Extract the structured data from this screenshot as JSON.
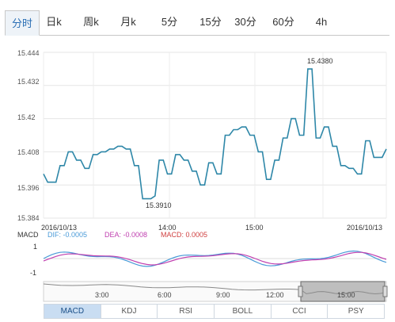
{
  "tabs": [
    {
      "label": "分时",
      "active": true
    },
    {
      "label": "日k",
      "active": false
    },
    {
      "label": "周k",
      "active": false
    },
    {
      "label": "月k",
      "active": false
    },
    {
      "label": "5分",
      "active": false
    },
    {
      "label": "15分",
      "active": false
    },
    {
      "label": "30分",
      "active": false
    },
    {
      "label": "60分",
      "active": false
    },
    {
      "label": "4h",
      "active": false
    }
  ],
  "chart_data": {
    "type": "line",
    "y_ticks": [
      "15.444",
      "15.432",
      "15.42",
      "15.408",
      "15.396",
      "15.384"
    ],
    "ylim": [
      15.384,
      15.444
    ],
    "grid": true,
    "x_tick_labels": [
      "2016/10/13",
      "14:00",
      "15:00",
      "2016/10/13"
    ],
    "annotations": [
      {
        "text": "15.4380",
        "y": 15.438
      },
      {
        "text": "15.3910",
        "y": 15.391
      }
    ],
    "series": [
      {
        "color": "#2e87a8",
        "values": [
          15.4,
          15.397,
          15.397,
          15.397,
          15.403,
          15.403,
          15.408,
          15.408,
          15.405,
          15.405,
          15.402,
          15.402,
          15.407,
          15.407,
          15.408,
          15.408,
          15.409,
          15.409,
          15.41,
          15.41,
          15.409,
          15.409,
          15.403,
          15.403,
          15.391,
          15.391,
          15.391,
          15.392,
          15.405,
          15.405,
          15.4,
          15.4,
          15.407,
          15.407,
          15.405,
          15.405,
          15.401,
          15.401,
          15.396,
          15.396,
          15.404,
          15.404,
          15.4,
          15.4,
          15.414,
          15.414,
          15.416,
          15.416,
          15.417,
          15.417,
          15.414,
          15.414,
          15.408,
          15.408,
          15.398,
          15.398,
          15.405,
          15.405,
          15.413,
          15.413,
          15.42,
          15.42,
          15.414,
          15.414,
          15.438,
          15.438,
          15.413,
          15.413,
          15.417,
          15.417,
          15.41,
          15.41,
          15.403,
          15.403,
          15.402,
          15.402,
          15.4,
          15.4,
          15.412,
          15.412,
          15.406,
          15.406,
          15.406,
          15.409
        ]
      }
    ]
  },
  "macd": {
    "label": "MACD",
    "dif": "DIF: -0.0005",
    "dea": "DEA: -0.0008",
    "macd": "MACD: 0.0005",
    "y_top": "1",
    "y_bottom": "-1",
    "colors": {
      "dif": "#4a9bd8",
      "dea": "#c040b0",
      "macd": "#d04040"
    }
  },
  "navigator": {
    "times": [
      "3:00",
      "6:00",
      "9:00",
      "12:00",
      "15:00"
    ]
  },
  "indicators": [
    {
      "label": "MACD",
      "active": true
    },
    {
      "label": "KDJ",
      "active": false
    },
    {
      "label": "RSI",
      "active": false
    },
    {
      "label": "BOLL",
      "active": false
    },
    {
      "label": "CCI",
      "active": false
    },
    {
      "label": "PSY",
      "active": false
    }
  ]
}
